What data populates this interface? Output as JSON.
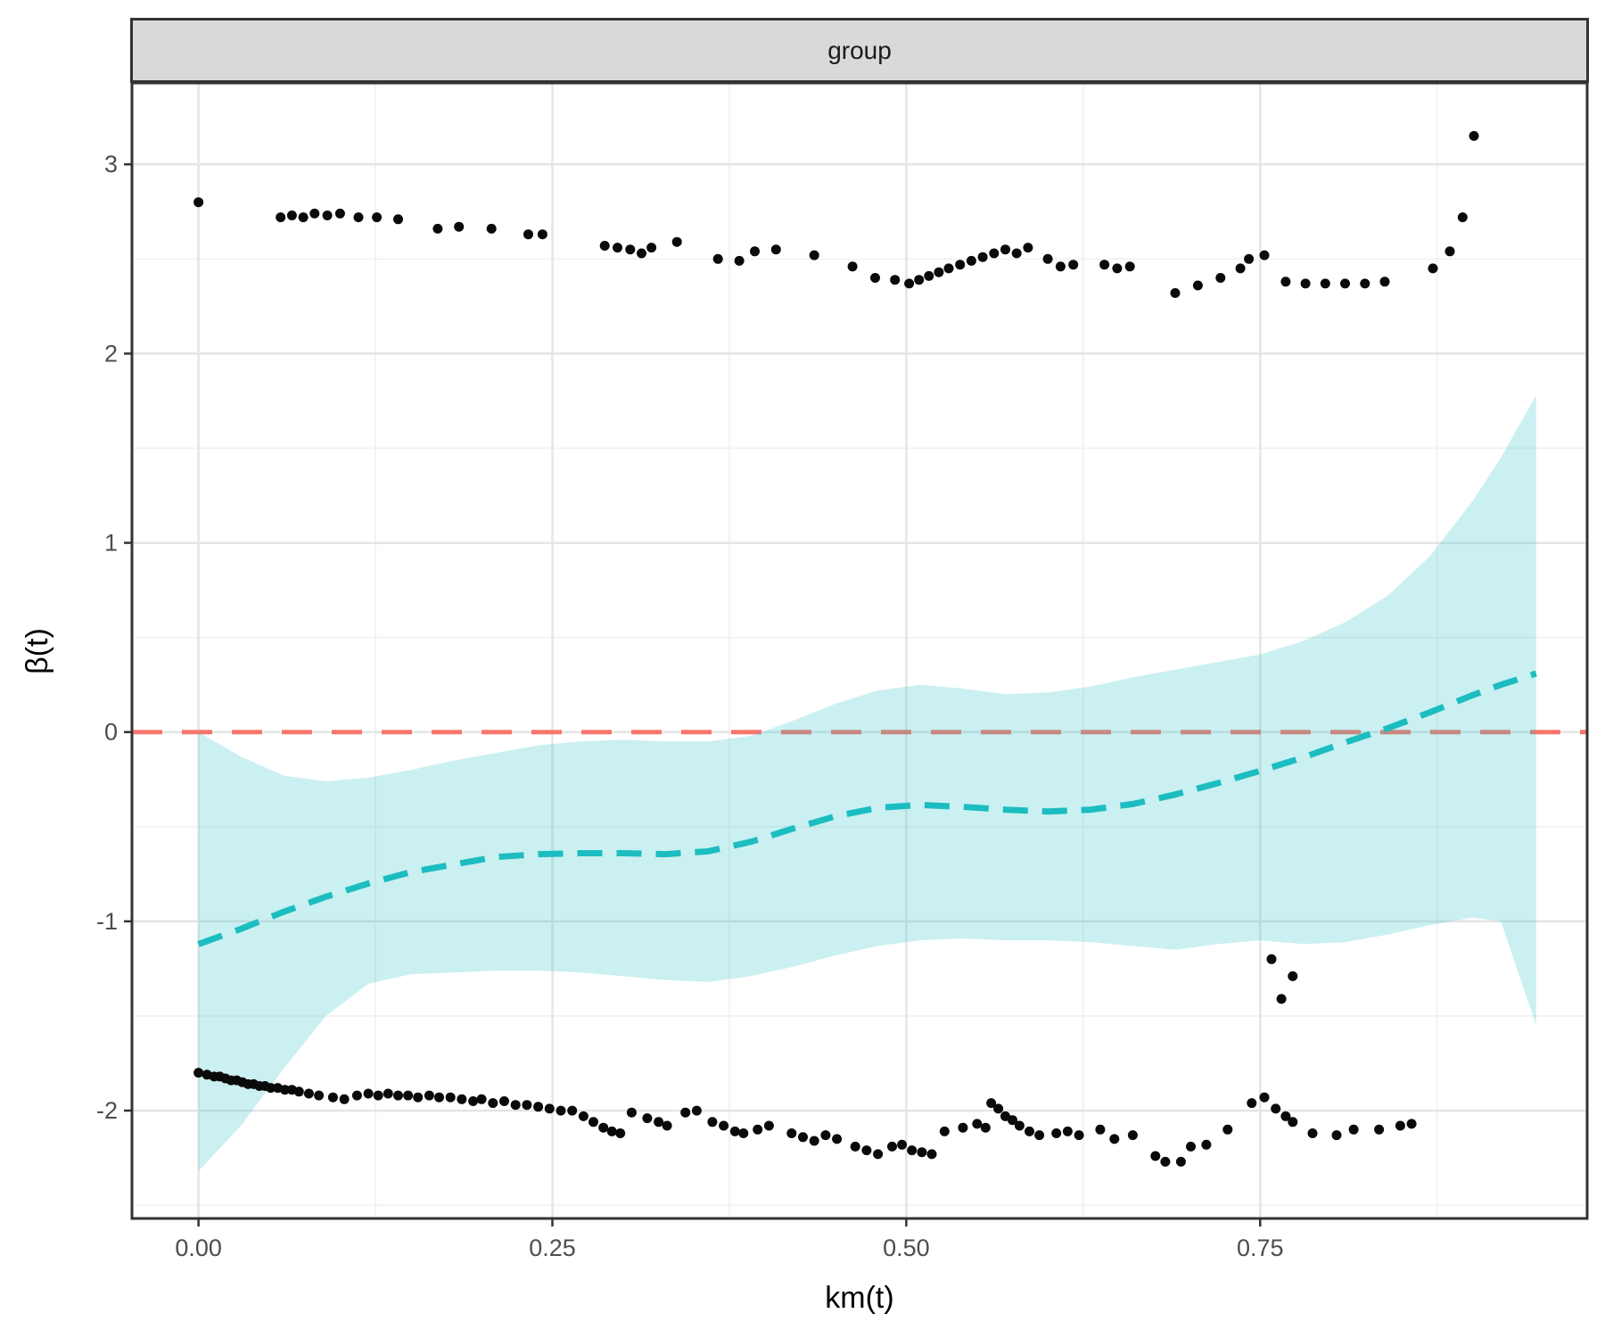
{
  "colors": {
    "strip_bg": "#D9D9D9",
    "strip_border": "#333333",
    "panel_border": "#333333",
    "grid_major": "#E5E5E5",
    "grid_minor": "#F0F0F0",
    "tick_mark": "#333333",
    "tick_label": "#4D4D4D",
    "reference_line": "#F8766D",
    "smooth_line": "#1CBDC0",
    "band_fill": "#31C2C8",
    "point": "#0A0A0A"
  },
  "chart_data": {
    "type": "scatter",
    "facet_title": "group",
    "xlabel": "km(t)",
    "ylabel": "β(t)",
    "xlim": [
      -0.047,
      0.981
    ],
    "ylim": [
      -2.57,
      3.43
    ],
    "grid": true,
    "x_ticks": {
      "labels": [
        "0.00",
        "0.25",
        "0.50",
        "0.75"
      ],
      "values": [
        0,
        0.25,
        0.5,
        0.75
      ],
      "minor": [
        0.125,
        0.375,
        0.625,
        0.875
      ]
    },
    "y_ticks": {
      "labels": [
        "3",
        "2",
        "1",
        "0",
        "-1",
        "-2"
      ],
      "values": [
        3,
        2,
        1,
        0,
        -1,
        -2
      ],
      "minor": [
        2.5,
        1.5,
        0.5,
        -0.5,
        -1.5,
        -2.5
      ]
    },
    "reference_line": {
      "y": 0,
      "style": "dashed",
      "color": "#F8766D"
    },
    "smooth_line": {
      "style": "dashed",
      "color": "#1CBDC0",
      "x": [
        0.0,
        0.03,
        0.06,
        0.09,
        0.12,
        0.15,
        0.18,
        0.21,
        0.24,
        0.27,
        0.3,
        0.33,
        0.36,
        0.39,
        0.42,
        0.45,
        0.48,
        0.51,
        0.54,
        0.57,
        0.6,
        0.63,
        0.66,
        0.69,
        0.72,
        0.75,
        0.78,
        0.81,
        0.84,
        0.87,
        0.9,
        0.92,
        0.945
      ],
      "y": [
        -1.12,
        -1.04,
        -0.95,
        -0.87,
        -0.8,
        -0.74,
        -0.7,
        -0.66,
        -0.645,
        -0.64,
        -0.64,
        -0.645,
        -0.63,
        -0.58,
        -0.51,
        -0.445,
        -0.4,
        -0.385,
        -0.395,
        -0.41,
        -0.42,
        -0.41,
        -0.38,
        -0.33,
        -0.27,
        -0.205,
        -0.135,
        -0.055,
        0.02,
        0.105,
        0.195,
        0.25,
        0.31
      ]
    },
    "confidence_band": {
      "fill": "#31C2C8",
      "opacity": 0.25,
      "x": [
        0.0,
        0.03,
        0.06,
        0.09,
        0.12,
        0.15,
        0.18,
        0.21,
        0.24,
        0.27,
        0.3,
        0.33,
        0.36,
        0.39,
        0.42,
        0.45,
        0.48,
        0.51,
        0.54,
        0.57,
        0.6,
        0.63,
        0.66,
        0.69,
        0.72,
        0.75,
        0.78,
        0.81,
        0.84,
        0.87,
        0.9,
        0.92,
        0.945
      ],
      "y_upper": [
        0.0,
        -0.13,
        -0.23,
        -0.26,
        -0.24,
        -0.2,
        -0.15,
        -0.11,
        -0.07,
        -0.05,
        -0.04,
        -0.05,
        -0.05,
        -0.02,
        0.06,
        0.15,
        0.22,
        0.25,
        0.23,
        0.2,
        0.21,
        0.24,
        0.29,
        0.33,
        0.37,
        0.41,
        0.48,
        0.58,
        0.72,
        0.93,
        1.22,
        1.45,
        1.78
      ],
      "y_lower": [
        -2.32,
        -2.08,
        -1.78,
        -1.5,
        -1.33,
        -1.28,
        -1.27,
        -1.26,
        -1.26,
        -1.27,
        -1.29,
        -1.31,
        -1.32,
        -1.29,
        -1.24,
        -1.18,
        -1.13,
        -1.1,
        -1.09,
        -1.1,
        -1.1,
        -1.11,
        -1.13,
        -1.15,
        -1.12,
        -1.1,
        -1.12,
        -1.11,
        -1.07,
        -1.02,
        -0.98,
        -1.0,
        -1.55
      ]
    },
    "series": [
      {
        "name": "residuals-upper-band",
        "color": "#0A0A0A",
        "points": [
          [
            0.0,
            2.8
          ],
          [
            0.058,
            2.72
          ],
          [
            0.066,
            2.73
          ],
          [
            0.074,
            2.72
          ],
          [
            0.082,
            2.74
          ],
          [
            0.091,
            2.73
          ],
          [
            0.1,
            2.74
          ],
          [
            0.113,
            2.72
          ],
          [
            0.126,
            2.72
          ],
          [
            0.141,
            2.71
          ],
          [
            0.169,
            2.66
          ],
          [
            0.184,
            2.67
          ],
          [
            0.207,
            2.66
          ],
          [
            0.233,
            2.63
          ],
          [
            0.243,
            2.63
          ],
          [
            0.287,
            2.57
          ],
          [
            0.296,
            2.56
          ],
          [
            0.305,
            2.55
          ],
          [
            0.313,
            2.53
          ],
          [
            0.32,
            2.56
          ],
          [
            0.338,
            2.59
          ],
          [
            0.367,
            2.5
          ],
          [
            0.382,
            2.49
          ],
          [
            0.393,
            2.54
          ],
          [
            0.408,
            2.55
          ],
          [
            0.435,
            2.52
          ],
          [
            0.462,
            2.46
          ],
          [
            0.478,
            2.4
          ],
          [
            0.492,
            2.39
          ],
          [
            0.502,
            2.37
          ],
          [
            0.509,
            2.39
          ],
          [
            0.516,
            2.41
          ],
          [
            0.523,
            2.43
          ],
          [
            0.53,
            2.45
          ],
          [
            0.538,
            2.47
          ],
          [
            0.546,
            2.49
          ],
          [
            0.554,
            2.51
          ],
          [
            0.562,
            2.53
          ],
          [
            0.57,
            2.55
          ],
          [
            0.578,
            2.53
          ],
          [
            0.586,
            2.56
          ],
          [
            0.6,
            2.5
          ],
          [
            0.609,
            2.46
          ],
          [
            0.618,
            2.47
          ],
          [
            0.64,
            2.47
          ],
          [
            0.649,
            2.45
          ],
          [
            0.658,
            2.46
          ],
          [
            0.69,
            2.32
          ],
          [
            0.706,
            2.36
          ],
          [
            0.722,
            2.4
          ],
          [
            0.736,
            2.45
          ],
          [
            0.742,
            2.5
          ],
          [
            0.753,
            2.52
          ],
          [
            0.768,
            2.38
          ],
          [
            0.782,
            2.37
          ],
          [
            0.796,
            2.37
          ],
          [
            0.81,
            2.37
          ],
          [
            0.824,
            2.37
          ],
          [
            0.838,
            2.38
          ],
          [
            0.872,
            2.45
          ],
          [
            0.884,
            2.54
          ],
          [
            0.893,
            2.72
          ],
          [
            0.901,
            3.15
          ]
        ]
      },
      {
        "name": "residuals-lower-band",
        "color": "#0A0A0A",
        "points": [
          [
            0.0,
            -1.8
          ],
          [
            0.006,
            -1.81
          ],
          [
            0.011,
            -1.82
          ],
          [
            0.015,
            -1.82
          ],
          [
            0.019,
            -1.83
          ],
          [
            0.023,
            -1.84
          ],
          [
            0.027,
            -1.84
          ],
          [
            0.031,
            -1.85
          ],
          [
            0.035,
            -1.86
          ],
          [
            0.039,
            -1.86
          ],
          [
            0.043,
            -1.87
          ],
          [
            0.047,
            -1.87
          ],
          [
            0.051,
            -1.88
          ],
          [
            0.056,
            -1.88
          ],
          [
            0.061,
            -1.89
          ],
          [
            0.066,
            -1.89
          ],
          [
            0.071,
            -1.9
          ],
          [
            0.078,
            -1.91
          ],
          [
            0.085,
            -1.92
          ],
          [
            0.095,
            -1.93
          ],
          [
            0.103,
            -1.94
          ],
          [
            0.112,
            -1.92
          ],
          [
            0.12,
            -1.91
          ],
          [
            0.127,
            -1.92
          ],
          [
            0.134,
            -1.91
          ],
          [
            0.141,
            -1.92
          ],
          [
            0.148,
            -1.92
          ],
          [
            0.155,
            -1.93
          ],
          [
            0.163,
            -1.92
          ],
          [
            0.17,
            -1.93
          ],
          [
            0.178,
            -1.93
          ],
          [
            0.186,
            -1.94
          ],
          [
            0.194,
            -1.95
          ],
          [
            0.2,
            -1.94
          ],
          [
            0.208,
            -1.96
          ],
          [
            0.216,
            -1.95
          ],
          [
            0.224,
            -1.97
          ],
          [
            0.232,
            -1.97
          ],
          [
            0.24,
            -1.98
          ],
          [
            0.248,
            -1.99
          ],
          [
            0.256,
            -2.0
          ],
          [
            0.264,
            -2.0
          ],
          [
            0.272,
            -2.03
          ],
          [
            0.279,
            -2.06
          ],
          [
            0.286,
            -2.09
          ],
          [
            0.292,
            -2.11
          ],
          [
            0.298,
            -2.12
          ],
          [
            0.306,
            -2.01
          ],
          [
            0.317,
            -2.04
          ],
          [
            0.325,
            -2.06
          ],
          [
            0.331,
            -2.08
          ],
          [
            0.344,
            -2.01
          ],
          [
            0.352,
            -2.0
          ],
          [
            0.363,
            -2.06
          ],
          [
            0.371,
            -2.08
          ],
          [
            0.379,
            -2.11
          ],
          [
            0.385,
            -2.12
          ],
          [
            0.395,
            -2.1
          ],
          [
            0.403,
            -2.08
          ],
          [
            0.419,
            -2.12
          ],
          [
            0.427,
            -2.14
          ],
          [
            0.435,
            -2.16
          ],
          [
            0.443,
            -2.13
          ],
          [
            0.451,
            -2.15
          ],
          [
            0.464,
            -2.19
          ],
          [
            0.472,
            -2.21
          ],
          [
            0.48,
            -2.23
          ],
          [
            0.49,
            -2.19
          ],
          [
            0.497,
            -2.18
          ],
          [
            0.504,
            -2.21
          ],
          [
            0.511,
            -2.22
          ],
          [
            0.518,
            -2.23
          ],
          [
            0.527,
            -2.11
          ],
          [
            0.54,
            -2.09
          ],
          [
            0.55,
            -2.07
          ],
          [
            0.556,
            -2.09
          ],
          [
            0.56,
            -1.96
          ],
          [
            0.565,
            -1.99
          ],
          [
            0.57,
            -2.03
          ],
          [
            0.575,
            -2.05
          ],
          [
            0.58,
            -2.08
          ],
          [
            0.587,
            -2.11
          ],
          [
            0.594,
            -2.13
          ],
          [
            0.606,
            -2.12
          ],
          [
            0.614,
            -2.11
          ],
          [
            0.622,
            -2.13
          ],
          [
            0.637,
            -2.1
          ],
          [
            0.647,
            -2.15
          ],
          [
            0.66,
            -2.13
          ],
          [
            0.676,
            -2.24
          ],
          [
            0.683,
            -2.27
          ],
          [
            0.694,
            -2.27
          ],
          [
            0.701,
            -2.19
          ],
          [
            0.712,
            -2.18
          ],
          [
            0.727,
            -2.1
          ],
          [
            0.744,
            -1.96
          ],
          [
            0.753,
            -1.93
          ],
          [
            0.761,
            -1.99
          ],
          [
            0.768,
            -2.03
          ],
          [
            0.773,
            -2.06
          ],
          [
            0.787,
            -2.12
          ],
          [
            0.804,
            -2.13
          ],
          [
            0.816,
            -2.1
          ],
          [
            0.834,
            -2.1
          ],
          [
            0.849,
            -2.08
          ],
          [
            0.857,
            -2.07
          ]
        ]
      },
      {
        "name": "lower-band-outliers",
        "color": "#0A0A0A",
        "points": [
          [
            0.758,
            -1.2
          ],
          [
            0.773,
            -1.29
          ],
          [
            0.765,
            -1.41
          ]
        ]
      }
    ]
  }
}
